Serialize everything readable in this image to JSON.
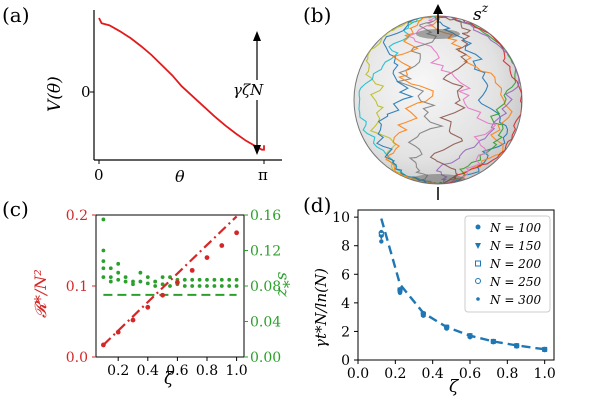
{
  "panels": {
    "a": {
      "label": "(a)",
      "ylabel": "V(θ)",
      "y_zero_tick": "0",
      "x_ticks": [
        "0",
        "θ",
        "π"
      ],
      "annotation": "γζN"
    },
    "b": {
      "label": "(b)",
      "axis_label": "s",
      "axis_label_sup": "z"
    },
    "c": {
      "label": "(c)",
      "ylabel_left": "𝓡*/N²",
      "ylabel_right": "s*z",
      "xlabel": "ζ",
      "left_ticks": [
        "0.0",
        "0.1",
        "0.2"
      ],
      "right_ticks": [
        "0.00",
        "0.04",
        "0.08",
        "0.12",
        "0.16"
      ],
      "x_ticks": [
        "0.2",
        "0.4",
        "0.6",
        "0.8",
        "1.0"
      ]
    },
    "d": {
      "label": "(d)",
      "ylabel": "γt*N/ln(N)",
      "xlabel": "ζ",
      "y_ticks": [
        "0",
        "2",
        "4",
        "6",
        "8",
        "10"
      ],
      "x_ticks": [
        "0.0",
        "0.2",
        "0.4",
        "0.6",
        "0.8",
        "1.0"
      ],
      "legend": [
        "N = 100",
        "N = 150",
        "N = 200",
        "N = 250",
        "N = 300"
      ]
    }
  },
  "colors": {
    "potential": "#e31a1c",
    "red_series": "#d62728",
    "green_series": "#2ca02c",
    "blue_series": "#1f77b4"
  },
  "chart_data": [
    {
      "panel": "a",
      "type": "line",
      "xlabel": "θ",
      "ylabel": "V(θ)",
      "series": [
        {
          "x": [
            0.0,
            0.05,
            0.2,
            0.4,
            0.6,
            0.8,
            1.0,
            1.2,
            1.4,
            1.57,
            1.8,
            2.0,
            2.2,
            2.4,
            2.6,
            2.8,
            3.0,
            3.1,
            3.14,
            3.14
          ],
          "values": [
            1.0,
            0.93,
            0.9,
            0.82,
            0.73,
            0.62,
            0.5,
            0.36,
            0.22,
            0.08,
            -0.07,
            -0.2,
            -0.33,
            -0.45,
            -0.56,
            -0.66,
            -0.74,
            -0.78,
            -0.78,
            -0.72
          ]
        }
      ]
    },
    {
      "panel": "c",
      "type": "scatter",
      "xlabel": "ζ",
      "xlim": [
        0.05,
        1.05
      ],
      "series": [
        {
          "axis": "left",
          "ylim": [
            0,
            0.2
          ],
          "x": [
            0.1,
            0.2,
            0.3,
            0.4,
            0.5,
            0.6,
            0.7,
            0.8,
            0.9,
            1.0
          ],
          "values": [
            0.017,
            0.035,
            0.052,
            0.07,
            0.087,
            0.105,
            0.122,
            0.14,
            0.157,
            0.175
          ],
          "fit": [
            [
              0.1,
              0.017
            ],
            [
              1.0,
              0.198
            ]
          ]
        },
        {
          "axis": "right",
          "ylim": [
            0,
            0.16
          ],
          "x": [
            0.1,
            0.1,
            0.1,
            0.1,
            0.1,
            0.15,
            0.15,
            0.15,
            0.2,
            0.2,
            0.2,
            0.25,
            0.25,
            0.3,
            0.3,
            0.35,
            0.35,
            0.4,
            0.4,
            0.45,
            0.45,
            0.5,
            0.5,
            0.55,
            0.55,
            0.6,
            0.6,
            0.65,
            0.65,
            0.7,
            0.7,
            0.75,
            0.75,
            0.8,
            0.8,
            0.85,
            0.85,
            0.9,
            0.9,
            0.95,
            0.95,
            1.0,
            1.0
          ],
          "values": [
            0.155,
            0.12,
            0.108,
            0.1,
            0.09,
            0.1,
            0.09,
            0.085,
            0.105,
            0.095,
            0.087,
            0.09,
            0.085,
            0.085,
            0.082,
            0.095,
            0.085,
            0.09,
            0.083,
            0.085,
            0.08,
            0.09,
            0.082,
            0.09,
            0.08,
            0.087,
            0.082,
            0.087,
            0.08,
            0.087,
            0.08,
            0.087,
            0.08,
            0.087,
            0.08,
            0.087,
            0.08,
            0.087,
            0.08,
            0.087,
            0.08,
            0.087,
            0.08
          ],
          "fit_level": 0.07
        }
      ]
    },
    {
      "panel": "d",
      "type": "line",
      "xlabel": "ζ",
      "ylabel": "γt*N/ln(N)",
      "xlim": [
        0,
        1.05
      ],
      "ylim": [
        0,
        10.5
      ],
      "x": [
        0.125,
        0.225,
        0.35,
        0.475,
        0.6,
        0.725,
        0.85,
        1.0
      ],
      "series": [
        {
          "name": "N = 100",
          "values": [
            8.3,
            4.7,
            3.1,
            2.2,
            1.6,
            1.25,
            0.95,
            0.7
          ]
        },
        {
          "name": "N = 150",
          "values": [
            8.6,
            4.8,
            3.2,
            2.25,
            1.65,
            1.3,
            1.0,
            0.72
          ]
        },
        {
          "name": "N = 200",
          "values": [
            8.8,
            4.9,
            3.2,
            2.3,
            1.7,
            1.3,
            1.0,
            0.74
          ]
        },
        {
          "name": "N = 250",
          "values": [
            8.9,
            4.9,
            3.25,
            2.3,
            1.7,
            1.3,
            1.0,
            0.74
          ]
        },
        {
          "name": "N = 300",
          "values": [
            9.0,
            5.0,
            3.3,
            2.35,
            1.72,
            1.32,
            1.02,
            0.75
          ]
        }
      ],
      "fit_values": [
        9.9,
        5.3,
        3.3,
        2.3,
        1.7,
        1.3,
        1.02,
        0.75
      ]
    }
  ]
}
